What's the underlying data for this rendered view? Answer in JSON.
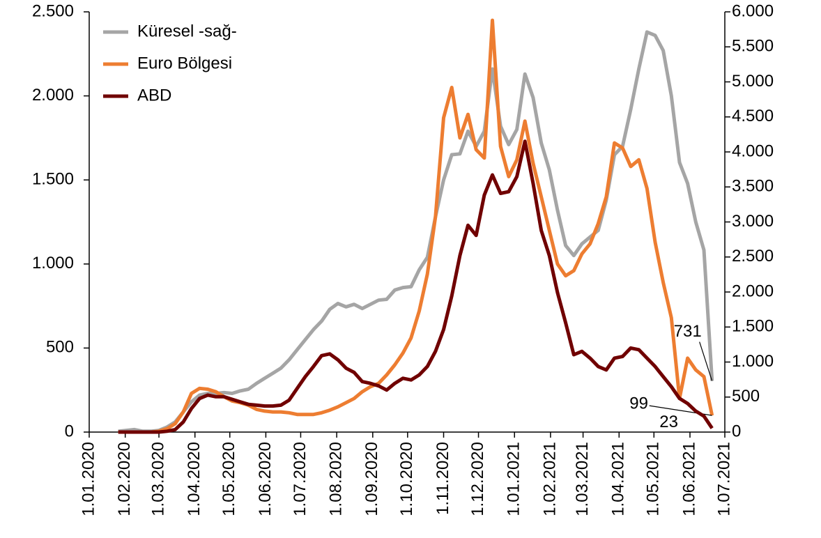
{
  "chart_data": {
    "type": "line",
    "x": [
      "2020-01-26",
      "2020-02-02",
      "2020-02-09",
      "2020-02-16",
      "2020-02-23",
      "2020-03-01",
      "2020-03-08",
      "2020-03-15",
      "2020-03-22",
      "2020-03-29",
      "2020-04-05",
      "2020-04-12",
      "2020-04-19",
      "2020-04-26",
      "2020-05-03",
      "2020-05-10",
      "2020-05-17",
      "2020-05-24",
      "2020-05-31",
      "2020-06-07",
      "2020-06-14",
      "2020-06-21",
      "2020-06-28",
      "2020-07-05",
      "2020-07-12",
      "2020-07-19",
      "2020-07-26",
      "2020-08-02",
      "2020-08-09",
      "2020-08-16",
      "2020-08-23",
      "2020-08-30",
      "2020-09-06",
      "2020-09-13",
      "2020-09-20",
      "2020-09-27",
      "2020-10-04",
      "2020-10-11",
      "2020-10-18",
      "2020-10-25",
      "2020-11-01",
      "2020-11-08",
      "2020-11-15",
      "2020-11-22",
      "2020-11-29",
      "2020-12-06",
      "2020-12-13",
      "2020-12-20",
      "2020-12-27",
      "2021-01-03",
      "2021-01-10",
      "2021-01-17",
      "2021-01-24",
      "2021-01-31",
      "2021-02-07",
      "2021-02-14",
      "2021-02-21",
      "2021-02-28",
      "2021-03-07",
      "2021-03-14",
      "2021-03-21",
      "2021-03-28",
      "2021-04-04",
      "2021-04-11",
      "2021-04-18",
      "2021-04-25",
      "2021-05-02",
      "2021-05-09",
      "2021-05-16",
      "2021-05-23",
      "2021-05-30",
      "2021-06-06",
      "2021-06-13",
      "2021-06-20"
    ],
    "series": [
      {
        "name": "Küresel -sağ-",
        "color": "#a5a5a5",
        "axis": "y2",
        "values": [
          12,
          24,
          36,
          12,
          12,
          24,
          72,
          144,
          288,
          432,
          528,
          552,
          552,
          564,
          552,
          588,
          612,
          696,
          768,
          840,
          912,
          1032,
          1176,
          1320,
          1464,
          1584,
          1752,
          1836,
          1788,
          1824,
          1764,
          1824,
          1884,
          1896,
          2028,
          2064,
          2076,
          2316,
          2496,
          3072,
          3600,
          3960,
          3972,
          4296,
          4080,
          4296,
          5184,
          4368,
          4104,
          4320,
          5112,
          4776,
          4128,
          3744,
          3168,
          2664,
          2520,
          2688,
          2784,
          2880,
          3312,
          3960,
          4080,
          4608,
          5184,
          5712,
          5664,
          5448,
          4800,
          3850,
          3550,
          3000,
          2600,
          731
        ]
      },
      {
        "name": "Euro Bölgesi",
        "color": "#ed7d31",
        "values": [
          0,
          0,
          0,
          0,
          0,
          5,
          20,
          50,
          120,
          230,
          260,
          255,
          240,
          210,
          185,
          175,
          160,
          135,
          125,
          120,
          120,
          115,
          105,
          105,
          105,
          115,
          130,
          150,
          175,
          200,
          240,
          270,
          290,
          340,
          400,
          470,
          560,
          720,
          940,
          1280,
          1870,
          2050,
          1750,
          1890,
          1680,
          1630,
          2450,
          1700,
          1520,
          1620,
          1850,
          1600,
          1400,
          1200,
          1000,
          930,
          960,
          1060,
          1120,
          1240,
          1400,
          1720,
          1690,
          1580,
          1620,
          1450,
          1130,
          890,
          680,
          200,
          440,
          370,
          330,
          99
        ]
      },
      {
        "name": "ABD",
        "color": "#700000",
        "values": [
          0,
          0,
          0,
          0,
          0,
          0,
          5,
          15,
          60,
          140,
          200,
          220,
          210,
          210,
          195,
          180,
          165,
          160,
          155,
          155,
          160,
          190,
          260,
          330,
          390,
          455,
          465,
          430,
          380,
          355,
          300,
          290,
          275,
          250,
          290,
          320,
          310,
          340,
          390,
          480,
          610,
          810,
          1050,
          1230,
          1170,
          1410,
          1530,
          1420,
          1430,
          1520,
          1730,
          1480,
          1200,
          1050,
          830,
          650,
          460,
          480,
          440,
          390,
          370,
          440,
          450,
          500,
          490,
          440,
          390,
          330,
          270,
          200,
          170,
          125,
          95,
          23
        ]
      }
    ],
    "xlim": [
      "2020-01-01",
      "2021-07-01"
    ],
    "xticks": [
      {
        "value": "2020-01-01",
        "label": "1.01.2020"
      },
      {
        "value": "2020-02-01",
        "label": "1.02.2020"
      },
      {
        "value": "2020-03-01",
        "label": "1.03.2020"
      },
      {
        "value": "2020-04-01",
        "label": "1.04.2020"
      },
      {
        "value": "2020-05-01",
        "label": "1.05.2020"
      },
      {
        "value": "2020-06-01",
        "label": "1.06.2020"
      },
      {
        "value": "2020-07-01",
        "label": "1.07.2020"
      },
      {
        "value": "2020-08-01",
        "label": "1.08.2020"
      },
      {
        "value": "2020-09-01",
        "label": "1.09.2020"
      },
      {
        "value": "2020-10-01",
        "label": "1.10.2020"
      },
      {
        "value": "2020-11-01",
        "label": "1.11.2020"
      },
      {
        "value": "2020-12-01",
        "label": "1.12.2020"
      },
      {
        "value": "2021-01-01",
        "label": "1.01.2021"
      },
      {
        "value": "2021-02-01",
        "label": "1.02.2021"
      },
      {
        "value": "2021-03-01",
        "label": "1.03.2021"
      },
      {
        "value": "2021-04-01",
        "label": "1.04.2021"
      },
      {
        "value": "2021-05-01",
        "label": "1.05.2021"
      },
      {
        "value": "2021-06-01",
        "label": "1.06.2021"
      },
      {
        "value": "2021-07-01",
        "label": "1.07.2021"
      }
    ],
    "ylim": [
      0,
      2500
    ],
    "yticks": [
      0,
      500,
      {
        "value": 1000,
        "label": "1.000"
      },
      {
        "value": 1500,
        "label": "1.500"
      },
      {
        "value": 2000,
        "label": "2.000"
      },
      {
        "value": 2500,
        "label": "2.500"
      }
    ],
    "y2lim": [
      0,
      6000
    ],
    "y2ticks": [
      0,
      500,
      {
        "value": 1000,
        "label": "1.000"
      },
      {
        "value": 1500,
        "label": "1.500"
      },
      {
        "value": 2000,
        "label": "2.000"
      },
      {
        "value": 2500,
        "label": "2.500"
      },
      {
        "value": 3000,
        "label": "3.000"
      },
      {
        "value": 3500,
        "label": "3.500"
      },
      {
        "value": 4000,
        "label": "4.000"
      },
      {
        "value": 4500,
        "label": "4.500"
      },
      {
        "value": 5000,
        "label": "5.000"
      },
      {
        "value": 5500,
        "label": "5.500"
      },
      {
        "value": 6000,
        "label": "6.000"
      }
    ],
    "legend": "top-left",
    "grid": false
  }
}
